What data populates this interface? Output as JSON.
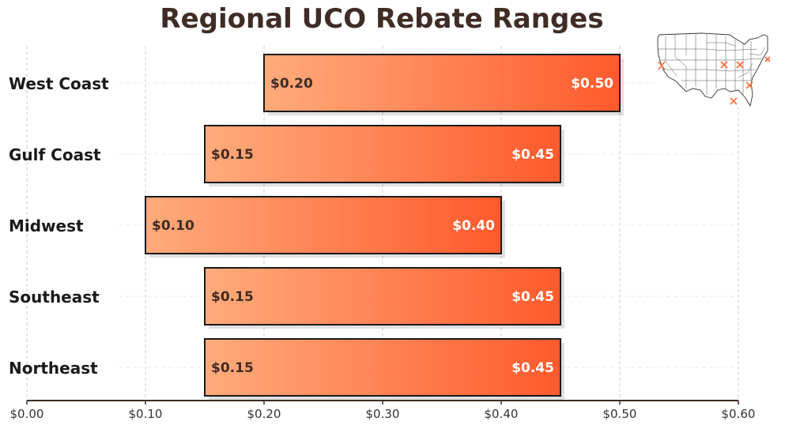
{
  "chart_data": {
    "type": "bar",
    "orientation": "horizontal-range",
    "title": "Regional UCO Rebate Ranges",
    "categories": [
      "West Coast",
      "Gulf Coast",
      "Midwest",
      "Southeast",
      "Northeast"
    ],
    "series": [
      {
        "min": [
          0.2,
          0.15,
          0.1,
          0.15,
          0.15
        ],
        "max": [
          0.5,
          0.45,
          0.4,
          0.45,
          0.45
        ]
      }
    ],
    "min_labels": [
      "$0.20",
      "$0.15",
      "$0.10",
      "$0.15",
      "$0.15"
    ],
    "max_labels": [
      "$0.50",
      "$0.45",
      "$0.40",
      "$0.45",
      "$0.45"
    ],
    "xlim": [
      0.0,
      0.6
    ],
    "xticks": [
      0.0,
      0.1,
      0.2,
      0.3,
      0.4,
      0.5,
      0.6
    ],
    "xtick_labels": [
      "$0.00",
      "$0.10",
      "$0.20",
      "$0.30",
      "$0.40",
      "$0.50",
      "$0.60"
    ],
    "xlabel": "",
    "ylabel": "",
    "grid": true,
    "inset": "us-map-top-right",
    "colors": {
      "bar_start": "#ffab7b",
      "bar_end": "#ff5a2c",
      "bar_border": "#1a1a1a",
      "axis": "#3e2c25",
      "title": "#3e2c25"
    }
  }
}
